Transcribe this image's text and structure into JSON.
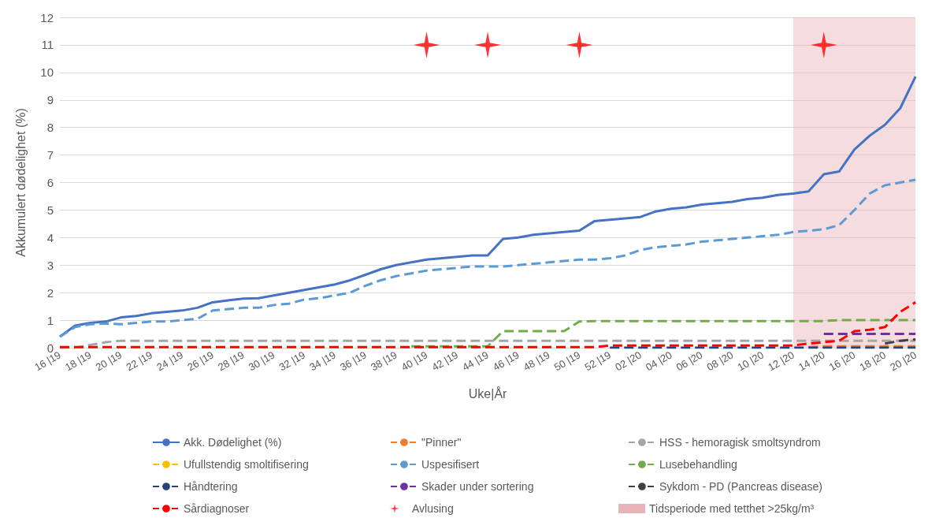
{
  "chart_data": {
    "type": "line",
    "xlabel": "Uke|År",
    "ylabel": "Akkumulert dødelighet (%)",
    "categories": [
      "16 |19",
      null,
      "18 |19",
      null,
      "20 |19",
      null,
      "22 |19",
      null,
      "24 |19",
      null,
      "26 |19",
      null,
      "28 |19",
      null,
      "30 |19",
      null,
      "32 |19",
      null,
      "34 |19",
      null,
      "36 |19",
      null,
      "38 |19",
      null,
      "40 |19",
      null,
      "42 |19",
      null,
      "44 |19",
      null,
      "46 |19",
      null,
      "48 |19",
      null,
      "50 |19",
      null,
      "52 |19",
      null,
      "02 |20",
      null,
      "04 |20",
      null,
      "06 |20",
      null,
      "08 |20",
      null,
      "10 |20",
      null,
      "12 |20",
      null,
      "14 |20",
      null,
      "16 |20",
      null,
      "18 |20",
      null,
      "20 |20"
    ],
    "ylim": [
      0,
      12
    ],
    "yticks": [
      0,
      1,
      2,
      3,
      4,
      5,
      6,
      7,
      8,
      9,
      10,
      11,
      12
    ],
    "grid": "y",
    "legend": "bottom",
    "series": [
      {
        "name": "Akk. Dødelighet (%)",
        "color": "#4472c4",
        "line_style": "solid",
        "values": [
          0.4,
          0.8,
          0.9,
          0.95,
          1.1,
          1.15,
          1.25,
          1.3,
          1.35,
          1.45,
          1.65,
          1.72,
          1.78,
          1.8,
          1.9,
          2.0,
          2.1,
          2.2,
          2.3,
          2.45,
          2.65,
          2.85,
          3.0,
          3.1,
          3.2,
          3.25,
          3.3,
          3.35,
          3.35,
          3.95,
          4.0,
          4.1,
          4.15,
          4.2,
          4.25,
          4.6,
          4.65,
          4.7,
          4.75,
          4.95,
          5.05,
          5.1,
          5.2,
          5.25,
          5.3,
          5.4,
          5.45,
          5.55,
          5.6,
          5.68,
          6.3,
          6.4,
          7.2,
          7.7,
          8.1,
          8.7,
          9.85
        ]
      },
      {
        "name": "\"Pinner\"",
        "color": "#ed7d31",
        "line_style": "dashed",
        "values": [
          null,
          null,
          null,
          null,
          null,
          null,
          null,
          null,
          null,
          null,
          null,
          null,
          null,
          null,
          null,
          null,
          null,
          null,
          null,
          null,
          null,
          null,
          null,
          null,
          null,
          null,
          null,
          null,
          null,
          null,
          null,
          null,
          null,
          null,
          null,
          null,
          null,
          null,
          null,
          null,
          null,
          null,
          null,
          null,
          null,
          null,
          null,
          null,
          null,
          0.02,
          0.05,
          0.05,
          0.05,
          0.05,
          0.05,
          0.05,
          0.05
        ]
      },
      {
        "name": "HSS - hemoragisk smoltsyndrom",
        "color": "#a5a5a5",
        "line_style": "dashed",
        "values": [
          0,
          0,
          0.1,
          0.2,
          0.25,
          0.25,
          0.25,
          0.25,
          0.25,
          0.25,
          0.25,
          0.25,
          0.25,
          0.25,
          0.25,
          0.25,
          0.25,
          0.25,
          0.25,
          0.25,
          0.25,
          0.25,
          0.25,
          0.25,
          0.25,
          0.25,
          0.25,
          0.25,
          0.25,
          0.25,
          0.25,
          0.25,
          0.25,
          0.25,
          0.25,
          0.25,
          0.25,
          0.25,
          0.25,
          0.25,
          0.25,
          0.25,
          0.25,
          0.25,
          0.25,
          0.25,
          0.25,
          0.25,
          0.25,
          0.25,
          0.25,
          0.25,
          0.25,
          0.25,
          0.25,
          0.25,
          0.25
        ]
      },
      {
        "name": "Ufullstendig smoltifisering",
        "color": "#ffc000",
        "line_style": "dashed",
        "values": [
          null,
          null,
          null,
          null,
          null,
          null,
          null,
          null,
          null,
          null,
          null,
          null,
          null,
          null,
          null,
          null,
          null,
          null,
          null,
          null,
          null,
          null,
          null,
          null,
          null,
          null,
          null,
          null,
          null,
          null,
          null,
          null,
          null,
          null,
          null,
          null,
          null,
          null,
          null,
          null,
          null,
          null,
          null,
          null,
          null,
          null,
          null,
          null,
          null,
          null,
          null,
          null,
          null,
          null,
          null,
          null,
          null
        ]
      },
      {
        "name": "Uspesifisert",
        "color": "#5b9bd5",
        "line_style": "dashed",
        "values": [
          0.4,
          0.75,
          0.85,
          0.88,
          0.85,
          0.9,
          0.95,
          0.95,
          1.0,
          1.05,
          1.35,
          1.4,
          1.45,
          1.45,
          1.55,
          1.6,
          1.75,
          1.8,
          1.9,
          2.0,
          2.25,
          2.45,
          2.6,
          2.7,
          2.8,
          2.85,
          2.9,
          2.95,
          2.95,
          2.95,
          3.0,
          3.05,
          3.1,
          3.15,
          3.2,
          3.2,
          3.25,
          3.35,
          3.55,
          3.65,
          3.7,
          3.75,
          3.85,
          3.9,
          3.95,
          4.0,
          4.05,
          4.1,
          4.2,
          4.25,
          4.3,
          4.45,
          5.0,
          5.6,
          5.9,
          6.0,
          6.1
        ]
      },
      {
        "name": "Lusebehandling",
        "color": "#70ad47",
        "line_style": "dashed",
        "values": [
          null,
          null,
          null,
          null,
          null,
          null,
          null,
          null,
          null,
          null,
          null,
          null,
          null,
          null,
          null,
          null,
          null,
          null,
          null,
          null,
          null,
          null,
          null,
          0.05,
          0.05,
          0.05,
          0.05,
          0.05,
          0.05,
          0.6,
          0.6,
          0.6,
          0.6,
          0.6,
          0.95,
          0.97,
          0.97,
          0.97,
          0.97,
          0.97,
          0.97,
          0.97,
          0.97,
          0.97,
          0.97,
          0.97,
          0.97,
          0.97,
          0.97,
          0.97,
          0.97,
          1.0,
          1.0,
          1.0,
          1.0,
          1.0,
          1.0
        ]
      },
      {
        "name": "Håndtering",
        "color": "#264478",
        "line_style": "dashed",
        "values": [
          null,
          null,
          null,
          null,
          null,
          null,
          null,
          null,
          null,
          null,
          null,
          null,
          null,
          null,
          null,
          null,
          null,
          null,
          null,
          null,
          null,
          null,
          null,
          null,
          null,
          null,
          null,
          null,
          null,
          null,
          null,
          null,
          null,
          null,
          null,
          null,
          0,
          0,
          0,
          0,
          0,
          0,
          0,
          0,
          0,
          0,
          0,
          0,
          0,
          0,
          0,
          0,
          0,
          0,
          0,
          0,
          0
        ]
      },
      {
        "name": "Skader under sortering",
        "color": "#7030a0",
        "line_style": "dashed",
        "values": [
          null,
          null,
          null,
          null,
          null,
          null,
          null,
          null,
          null,
          null,
          null,
          null,
          null,
          null,
          null,
          null,
          null,
          null,
          null,
          null,
          null,
          null,
          null,
          null,
          null,
          null,
          null,
          null,
          null,
          null,
          null,
          null,
          null,
          null,
          null,
          null,
          null,
          null,
          null,
          null,
          null,
          null,
          null,
          null,
          null,
          null,
          null,
          null,
          null,
          null,
          0.5,
          0.5,
          0.5,
          0.5,
          0.5,
          0.5,
          0.5
        ]
      },
      {
        "name": "Sykdom - PD (Pancreas disease)",
        "color": "#404040",
        "line_style": "dashed",
        "values": [
          null,
          null,
          null,
          null,
          null,
          null,
          null,
          null,
          null,
          null,
          null,
          null,
          null,
          null,
          null,
          null,
          null,
          null,
          null,
          null,
          null,
          null,
          null,
          null,
          null,
          null,
          null,
          null,
          null,
          null,
          null,
          null,
          null,
          null,
          null,
          null,
          null,
          null,
          null,
          null,
          null,
          null,
          null,
          null,
          null,
          null,
          null,
          null,
          null,
          null,
          null,
          null,
          null,
          null,
          0.15,
          0.25,
          0.3
        ]
      },
      {
        "name": "Sårdiagnoser",
        "color": "#ff0000",
        "line_style": "dashed",
        "values": [
          0.02,
          0.02,
          0.02,
          0.02,
          0.02,
          0.02,
          0.02,
          0.02,
          0.02,
          0.02,
          0.02,
          0.02,
          0.02,
          0.02,
          0.02,
          0.02,
          0.02,
          0.02,
          0.02,
          0.02,
          0.02,
          0.02,
          0.02,
          0.02,
          0.02,
          0.02,
          0.02,
          0.02,
          0.02,
          0.02,
          0.02,
          0.02,
          0.02,
          0.02,
          0.02,
          0.02,
          0.08,
          0.08,
          0.08,
          0.08,
          0.08,
          0.08,
          0.08,
          0.08,
          0.08,
          0.08,
          0.08,
          0.08,
          0.08,
          0.15,
          0.2,
          0.25,
          0.6,
          0.65,
          0.75,
          1.3,
          1.65
        ]
      },
      {
        "name": "Avlusing",
        "type": "scatter",
        "marker": "star",
        "color": "#ff0000",
        "x": [
          "40 |19",
          "44 |19",
          "50 |19",
          "14 |20"
        ],
        "values": [
          11,
          11,
          11,
          11
        ]
      }
    ],
    "bands": [
      {
        "axis": "x",
        "from": "12 |20",
        "to": "20 |20",
        "label": "Tidsperiode med tetthet >25kg/m³",
        "color": "#e8b4b8"
      }
    ]
  }
}
